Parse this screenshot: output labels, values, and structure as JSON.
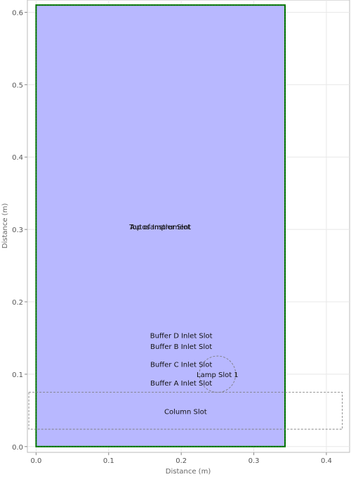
{
  "chart_data": {
    "type": "diagram",
    "xlabel": "Distance (m)",
    "ylabel": "Distance (m)",
    "xlim": [
      -0.012,
      0.432
    ],
    "ylim": [
      -0.008,
      0.617
    ],
    "x_ticks": [
      0.0,
      0.1,
      0.2,
      0.3,
      0.4
    ],
    "x_tick_labels": [
      "0.0",
      "0.1",
      "0.2",
      "0.3",
      "0.4"
    ],
    "y_ticks": [
      0.0,
      0.1,
      0.2,
      0.3,
      0.4,
      0.5,
      0.6
    ],
    "y_tick_labels": [
      "0.0",
      "0.1",
      "0.2",
      "0.3",
      "0.4",
      "0.5",
      "0.6"
    ],
    "grid": true,
    "colors": {
      "fill": "#b8b8ff",
      "outline": "#008000",
      "dashed": "#777777",
      "grid": "#e8e8e8"
    },
    "instrument": {
      "x": [
        0.0,
        0.343
      ],
      "y": [
        0.0,
        0.61
      ]
    },
    "column_box": {
      "x": [
        -0.01,
        0.422
      ],
      "y": [
        0.024,
        0.075
      ]
    },
    "lamp_circle": {
      "cx": 0.25,
      "cy": 0.1,
      "r": 0.025
    },
    "labels": [
      {
        "text": "Top of Instrument",
        "x": 0.171,
        "y": 0.304
      },
      {
        "text": "Autosampler Slot",
        "x": 0.171,
        "y": 0.304
      },
      {
        "text": "Buffer D Inlet Slot",
        "x": 0.2,
        "y": 0.154
      },
      {
        "text": "Buffer B Inlet Slot",
        "x": 0.2,
        "y": 0.139
      },
      {
        "text": "Buffer C Inlet Slot",
        "x": 0.2,
        "y": 0.114
      },
      {
        "text": "Lamp Slot 1",
        "x": 0.25,
        "y": 0.1
      },
      {
        "text": "Buffer A Inlet Slot",
        "x": 0.2,
        "y": 0.088
      },
      {
        "text": "Column Slot",
        "x": 0.206,
        "y": 0.049
      }
    ]
  }
}
